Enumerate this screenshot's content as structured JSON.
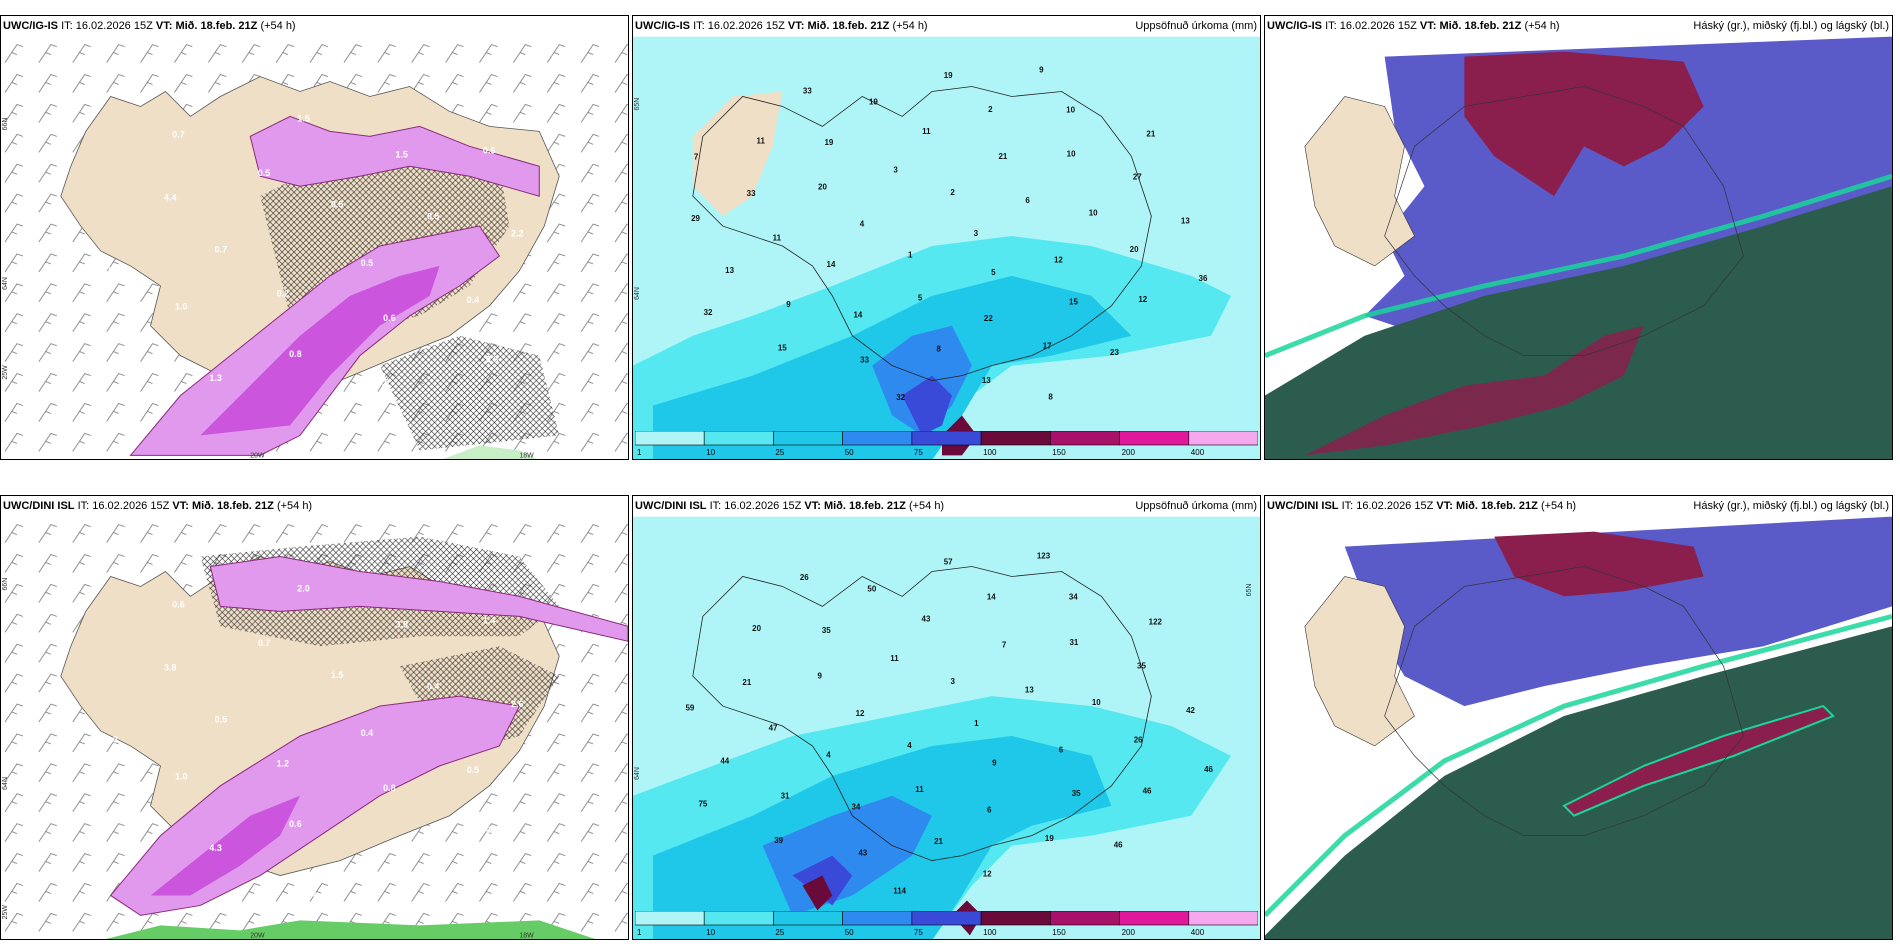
{
  "colors": {
    "land": "#efdfc7",
    "snow_light": "#e199ee",
    "snow_mid": "#cc55dd",
    "snow_dark": "#8a2a78",
    "rain_light": "#c8eec8",
    "rain_mid": "#66cc66",
    "precip_bg": "#aff5f8",
    "precip_10": "#55e8f0",
    "precip_25": "#1fc8e8",
    "precip_50": "#2f8af0",
    "precip_75": "#3a4ad8",
    "precip_100": "#6a0a3a",
    "precip_150": "#a8106a",
    "precip_200": "#e0189c",
    "precip_400": "#f6a8ee",
    "cloud_high": "#8a1f4e",
    "cloud_mid": "#5a5ac8",
    "cloud_low": "#2b5c4e",
    "cloud_edge": "#19d69a"
  },
  "panels": [
    {
      "model": "UWC/IG-IS",
      "it_label": "IT:",
      "it_value": "16.02.2026 15Z",
      "vt_label": "VT:",
      "vt_value": "Mið. 18.feb. 21Z",
      "lead": "(+54 h)",
      "right_title": "",
      "lat_labels": [
        "66N",
        "64N",
        "25W",
        "20W",
        "18W"
      ],
      "value_labels": [
        "0.5",
        "0.2",
        "0.5",
        "0.6",
        "0.7",
        "0.5",
        "0.8",
        "0.5",
        "0.4",
        "1.0",
        "1.5",
        "1.9",
        "4.4",
        "2.2",
        "1.3",
        "1.5",
        "0.8",
        "0.3",
        "0.6",
        "0.4",
        "0.7"
      ]
    },
    {
      "model": "UWC/IG-IS",
      "it_label": "IT:",
      "it_value": "16.02.2026 15Z",
      "vt_label": "VT:",
      "vt_value": "Mið. 18.feb. 21Z",
      "lead": "(+54 h)",
      "right_title": "Uppsöfnuð úrkoma (mm)",
      "lat_labels": [
        "65N",
        "64N"
      ],
      "value_labels": [
        "3",
        "1",
        "2",
        "5",
        "4",
        "6",
        "5",
        "3",
        "12",
        "14",
        "21",
        "22",
        "20",
        "10",
        "14",
        "11",
        "15",
        "11",
        "10",
        "8",
        "19",
        "20",
        "9",
        "2",
        "17",
        "33",
        "27",
        "33",
        "19",
        "12",
        "13",
        "10",
        "13",
        "11",
        "13",
        "15",
        "19",
        "23",
        "29",
        "21",
        "32",
        "33",
        "36",
        "32",
        "9",
        "8",
        "7"
      ],
      "legend_values": [
        "1",
        "10",
        "25",
        "50",
        "75",
        "100",
        "150",
        "200",
        "400"
      ]
    },
    {
      "model": "UWC/IG-IS",
      "it_label": "IT:",
      "it_value": "16.02.2026 15Z",
      "vt_label": "VT:",
      "vt_value": "Mið. 18.feb. 21Z",
      "lead": "(+54 h)",
      "right_title": "Háský (gr.), miðský (fj.bl.) og lágský (bl.)"
    },
    {
      "model": "UWC/DINI ISL",
      "it_label": "IT:",
      "it_value": "16.02.2026 15Z",
      "vt_label": "VT:",
      "vt_value": "Mið. 18.feb. 21Z",
      "lead": "(+54 h)",
      "right_title": "",
      "lat_labels": [
        "66N",
        "64N",
        "25W",
        "20W",
        "18W"
      ],
      "value_labels": [
        "0.4",
        "1.2",
        "1.5",
        "0.8",
        "0.5",
        "0.4",
        "0.6",
        "0.7",
        "0.5",
        "1.0",
        "3.9",
        "2.7",
        "3.8",
        "2.6",
        "4.3",
        "2.0",
        "0.7",
        "0.3",
        "1.4",
        "0.8",
        "0.6"
      ]
    },
    {
      "model": "UWC/DINI ISL",
      "it_label": "IT:",
      "it_value": "16.02.2026 15Z",
      "vt_label": "VT:",
      "vt_value": "Mið. 18.feb. 21Z",
      "lead": "(+54 h)",
      "right_title": "Uppsöfnuð úrkoma (mm)",
      "lat_labels": [
        "65N",
        "64N"
      ],
      "value_labels": [
        "1",
        "4",
        "3",
        "9",
        "12",
        "13",
        "11",
        "11",
        "6",
        "4",
        "7",
        "6",
        "9",
        "10",
        "34",
        "43",
        "35",
        "47",
        "31",
        "21",
        "35",
        "26",
        "31",
        "14",
        "19",
        "21",
        "35",
        "43",
        "50",
        "46",
        "44",
        "34",
        "12",
        "20",
        "42",
        "39",
        "57",
        "46",
        "59",
        "122",
        "114",
        "26",
        "46",
        "75",
        "123"
      ],
      "legend_values": [
        "1",
        "10",
        "25",
        "50",
        "75",
        "100",
        "150",
        "200",
        "400"
      ]
    },
    {
      "model": "UWC/DINI ISL",
      "it_label": "IT:",
      "it_value": "16.02.2026 15Z",
      "vt_label": "VT:",
      "vt_value": "Mið. 18.feb. 21Z",
      "lead": "(+54 h)",
      "right_title": "Háský (gr.), miðský (fj.bl.) og lágský (bl.)"
    }
  ]
}
